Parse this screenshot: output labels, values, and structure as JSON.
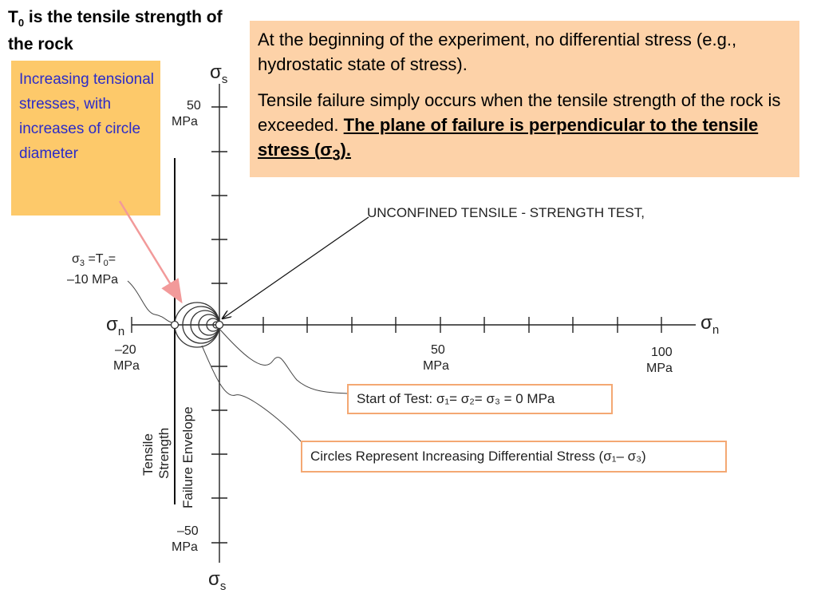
{
  "title": {
    "part1": "T",
    "sub": "0",
    "part2": " is the tensile strength of the rock"
  },
  "info": {
    "para1": "At the  beginning of the experiment, no differential stress (e.g., hydrostatic state of stress).",
    "para2_plain": "Tensile failure simply occurs when the tensile strength of the rock is exceeded. ",
    "para2_bold": "The plane of failure is perpendicular to the tensile stress (",
    "para2_sigma": "σ",
    "para2_sub": "3",
    "para2_end": ")."
  },
  "tension_note": "Increasing tensional stresses, with increases of circle diameter",
  "diagram": {
    "heading": "UNCONFINED TENSILE - STRENGTH TEST,",
    "axis_symbol": "σ",
    "axis_sub_s": "s",
    "axis_sub_n": "n",
    "tick_50_value": "50",
    "tick_100_value": "100",
    "tick_neg20_value": "–20",
    "tick_neg50_value": "–50",
    "unit": "MPa",
    "sigma3_label_a": "σ",
    "sigma3_label_sub": "3",
    "sigma3_label_b": " =T",
    "sigma3_label_sub0": "0",
    "sigma3_label_c": "=",
    "sigma3_value": "–10 MPa",
    "tensile_strength_line1": "Tensile",
    "tensile_strength_line2": "Strength",
    "failure_envelope": "Failure Envelope",
    "start_of_test": "Start of Test: σ₁= σ₂= σ₃ = 0 MPa",
    "circles_represent": "Circles Represent Increasing Differential Stress (σ₁– σ₃)"
  },
  "colors": {
    "info_bg": "#fdd2a8",
    "note_bg": "#fdc96a",
    "note_text": "#2b2bc8",
    "callout_border": "#f4a873",
    "pink_arrow": "#f29a9a"
  }
}
